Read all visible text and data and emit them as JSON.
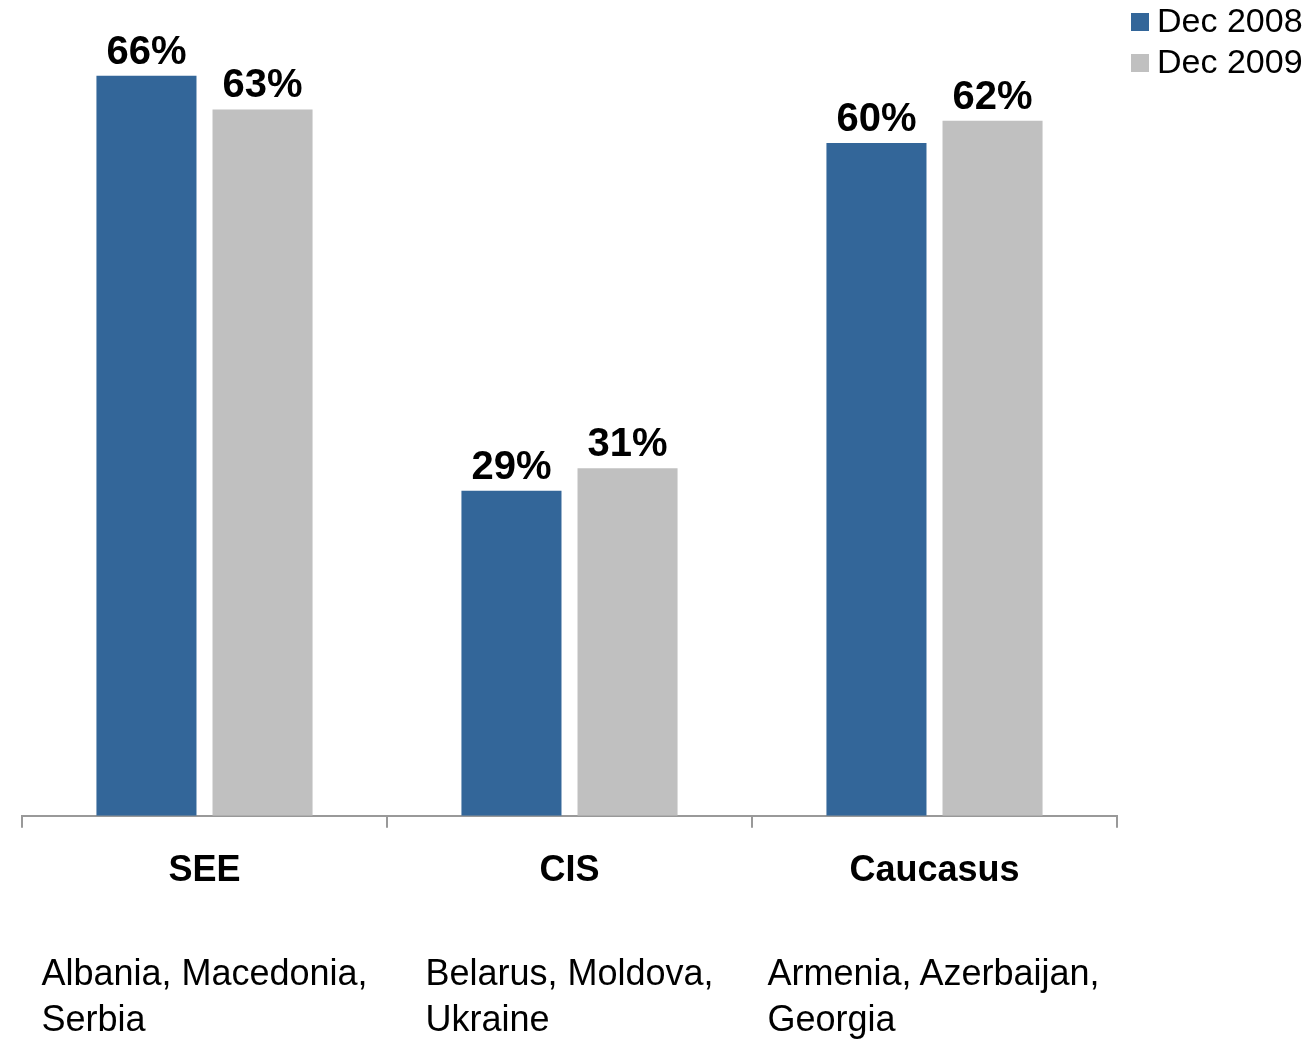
{
  "chart_data": {
    "type": "bar",
    "categories": [
      "SEE",
      "CIS",
      "Caucasus"
    ],
    "series": [
      {
        "name": "Dec 2008",
        "color": "#336699",
        "values": [
          66,
          29,
          60
        ],
        "value_labels": [
          "66%",
          "29%",
          "60%"
        ]
      },
      {
        "name": "Dec 2009",
        "color": "#c0c0c0",
        "values": [
          63,
          31,
          62
        ],
        "value_labels": [
          "63%",
          "31%",
          "62%"
        ]
      }
    ],
    "annotations": [
      "Albania, Macedonia, Serbia",
      "Belarus, Moldova, Ukraine",
      "Armenia, Azerbaijan, Georgia"
    ],
    "legend": "top right",
    "tick_labels": "x",
    "grid": false
  }
}
